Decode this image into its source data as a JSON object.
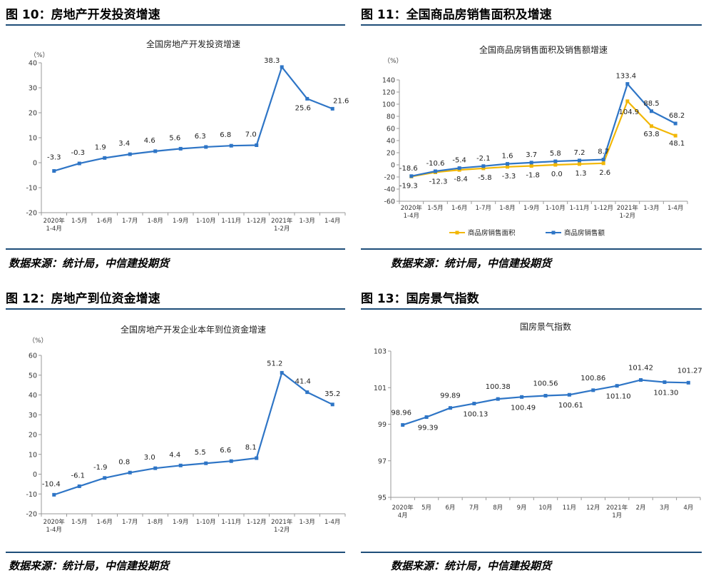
{
  "panels": [
    {
      "title": "图 10：房地产开发投资增速",
      "source": "数据来源：统计局，中信建投期货",
      "chart_data": {
        "type": "line",
        "title": "全国房地产开发投资增速",
        "ylabel": "（%）",
        "ylim": [
          -20,
          40
        ],
        "yticks": [
          -20,
          -10,
          0,
          10,
          20,
          30,
          40
        ],
        "categories": [
          [
            "2020年",
            "1-4月"
          ],
          [
            "1-5月"
          ],
          [
            "1-6月"
          ],
          [
            "1-7月"
          ],
          [
            "1-8月"
          ],
          [
            "1-9月"
          ],
          [
            "1-10月"
          ],
          [
            "1-11月"
          ],
          [
            "1-12月"
          ],
          [
            "2021年",
            "1-2月"
          ],
          [
            "1-3月"
          ],
          [
            "1-4月"
          ]
        ],
        "series": [
          {
            "name": "",
            "color": "#2e75c6",
            "values": [
              -3.3,
              -0.3,
              1.9,
              3.4,
              4.6,
              5.6,
              6.3,
              6.8,
              7.0,
              38.3,
              25.6,
              21.6
            ],
            "labels": [
              "-3.3",
              "-0.3",
              "1.9",
              "3.4",
              "4.6",
              "5.6",
              "6.3",
              "6.8",
              "7.0",
              "38.3",
              "25.6",
              "21.6"
            ]
          }
        ],
        "grid": false,
        "legend": "none"
      }
    },
    {
      "title": "图 11：全国商品房销售面积及增速",
      "source": "数据来源：统计局，中信建投期货",
      "chart_data": {
        "type": "line",
        "title": "全国商品房销售面积及销售额增速",
        "ylabel": "（%）",
        "ylim": [
          -60,
          140
        ],
        "yticks": [
          -60,
          -40,
          -20,
          0,
          20,
          40,
          60,
          80,
          100,
          120,
          140
        ],
        "categories": [
          [
            "2020年",
            "1-4月"
          ],
          [
            "1-5月"
          ],
          [
            "1-6月"
          ],
          [
            "1-7月"
          ],
          [
            "1-8月"
          ],
          [
            "1-9月"
          ],
          [
            "1-10月"
          ],
          [
            "1-11月"
          ],
          [
            "1-12月"
          ],
          [
            "2021年",
            "1-2月"
          ],
          [
            "1-3月"
          ],
          [
            "1-4月"
          ]
        ],
        "series": [
          {
            "name": "商品房销售面积",
            "color": "#f2b705",
            "values": [
              -19.3,
              -12.3,
              -8.4,
              -5.8,
              -3.3,
              -1.8,
              0.0,
              1.3,
              2.6,
              104.9,
              63.8,
              48.1
            ],
            "labels": [
              "-19.3",
              "-12.3",
              "-8.4",
              "-5.8",
              "-3.3",
              "-1.8",
              "0.0",
              "1.3",
              "2.6",
              "104.9",
              "63.8",
              "48.1"
            ]
          },
          {
            "name": "商品房销售额",
            "color": "#2e75c6",
            "values": [
              -18.6,
              -10.6,
              -5.4,
              -2.1,
              1.6,
              3.7,
              5.8,
              7.2,
              8.7,
              133.4,
              88.5,
              68.2
            ],
            "labels": [
              "-18.6",
              "-10.6",
              "-5.4",
              "-2.1",
              "1.6",
              "3.7",
              "5.8",
              "7.2",
              "8.7",
              "133.4",
              "88.5",
              "68.2"
            ]
          }
        ],
        "grid": false,
        "legend": "bottom"
      }
    },
    {
      "title": "图 12：房地产到位资金增速",
      "source": "数据来源：统计局，中信建投期货",
      "chart_data": {
        "type": "line",
        "title": "全国房地产开发企业本年到位资金增速",
        "ylabel": "（%）",
        "ylim": [
          -20,
          60
        ],
        "yticks": [
          -20,
          -10,
          0,
          10,
          20,
          30,
          40,
          50,
          60
        ],
        "categories": [
          [
            "2020年",
            "1-4月"
          ],
          [
            "1-5月"
          ],
          [
            "1-6月"
          ],
          [
            "1-7月"
          ],
          [
            "1-8月"
          ],
          [
            "1-9月"
          ],
          [
            "1-10月"
          ],
          [
            "1-11月"
          ],
          [
            "1-12月"
          ],
          [
            "2021年",
            "1-2月"
          ],
          [
            "1-3月"
          ],
          [
            "1-4月"
          ]
        ],
        "series": [
          {
            "name": "",
            "color": "#2e75c6",
            "values": [
              -10.4,
              -6.1,
              -1.9,
              0.8,
              3.0,
              4.4,
              5.5,
              6.6,
              8.1,
              51.2,
              41.4,
              35.2
            ],
            "labels": [
              "-10.4",
              "-6.1",
              "-1.9",
              "0.8",
              "3.0",
              "4.4",
              "5.5",
              "6.6",
              "8.1",
              "51.2",
              "41.4",
              "35.2"
            ]
          }
        ],
        "grid": false,
        "legend": "none"
      }
    },
    {
      "title": "图 13：国房景气指数",
      "source": "数据来源：统计局，中信建投期货",
      "chart_data": {
        "type": "line",
        "title": "国房景气指数",
        "ylabel": "",
        "ylim": [
          95,
          103
        ],
        "yticks": [
          95,
          97,
          99,
          101,
          103
        ],
        "categories": [
          [
            "2020年",
            "4月"
          ],
          [
            "5月"
          ],
          [
            "6月"
          ],
          [
            "7月"
          ],
          [
            "8月"
          ],
          [
            "9月"
          ],
          [
            "10月"
          ],
          [
            "11月"
          ],
          [
            "12月"
          ],
          [
            "2021年",
            "1月"
          ],
          [
            "2月"
          ],
          [
            "3月"
          ],
          [
            "4月"
          ]
        ],
        "series": [
          {
            "name": "",
            "color": "#2e75c6",
            "values": [
              98.96,
              99.39,
              99.89,
              100.13,
              100.38,
              100.49,
              100.56,
              100.61,
              100.86,
              101.1,
              101.42,
              101.3,
              101.27
            ],
            "labels": [
              "98.96",
              "99.39",
              "99.89",
              "100.13",
              "100.38",
              "100.49",
              "100.56",
              "100.61",
              "100.86",
              "101.10",
              "101.42",
              "101.30",
              "101.27"
            ]
          }
        ],
        "grid": false,
        "legend": "none"
      }
    }
  ]
}
